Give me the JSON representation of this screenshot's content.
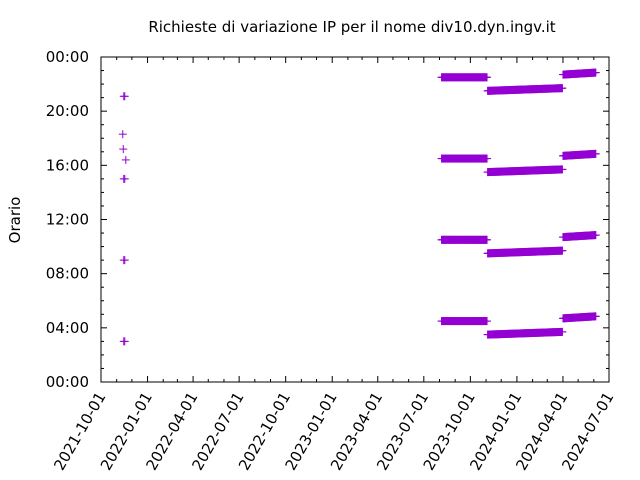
{
  "chart_data": {
    "type": "scatter",
    "title": "Richieste di variazione IP per il nome div10.dyn.ingv.it",
    "xlabel": "",
    "ylabel": "Orario",
    "x_axis": {
      "type": "date",
      "range": [
        "2021-10-01",
        "2024-07-01"
      ],
      "ticks": [
        "2021-10-01",
        "2022-01-01",
        "2022-04-01",
        "2022-07-01",
        "2022-10-01",
        "2023-01-01",
        "2023-04-01",
        "2023-07-01",
        "2023-10-01",
        "2024-01-01",
        "2024-04-01",
        "2024-07-01"
      ]
    },
    "y_axis": {
      "range_hours": [
        0,
        24
      ],
      "ticks": [
        "00:00",
        "04:00",
        "08:00",
        "12:00",
        "16:00",
        "20:00",
        "00:00"
      ],
      "tick_hours": [
        0,
        4,
        8,
        12,
        16,
        20,
        24
      ]
    },
    "grid": false,
    "marker": "+",
    "color": "#9400d3",
    "points": [
      {
        "date": "2021-11-13",
        "hour": 18.3
      },
      {
        "date": "2021-11-14",
        "hour": 17.2
      },
      {
        "date": "2021-11-15",
        "hour": 21.1
      },
      {
        "date": "2021-11-15",
        "hour": 15.0
      },
      {
        "date": "2021-11-15",
        "hour": 9.0
      },
      {
        "date": "2021-11-15",
        "hour": 3.0
      },
      {
        "date": "2021-11-17",
        "hour": 21.1
      },
      {
        "date": "2021-11-17",
        "hour": 15.0
      },
      {
        "date": "2021-11-17",
        "hour": 9.0
      },
      {
        "date": "2021-11-17",
        "hour": 3.0
      },
      {
        "date": "2021-11-19",
        "hour": 16.4
      }
    ],
    "series_segments": [
      {
        "start": "2023-08-05",
        "end": "2023-11-03",
        "hours": [
          22.5,
          16.5,
          10.5,
          4.5
        ],
        "drift_hours": 0.0
      },
      {
        "start": "2023-11-04",
        "end": "2024-03-31",
        "hours": [
          21.5,
          15.5,
          9.5,
          3.5
        ],
        "drift_hours": 0.2
      },
      {
        "start": "2024-04-01",
        "end": "2024-06-05",
        "hours": [
          22.7,
          16.7,
          10.7,
          4.7
        ],
        "drift_hours": 0.15
      }
    ]
  }
}
